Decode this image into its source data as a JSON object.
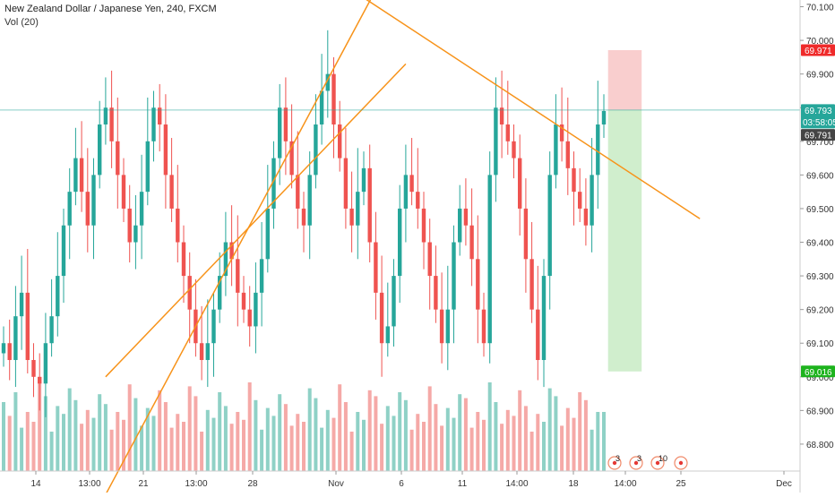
{
  "header": {
    "title": "New Zealand Dollar / Japanese Yen, 240, FXCM",
    "volume_label": "Vol (20)"
  },
  "colors": {
    "up": "#26a69a",
    "down": "#ef5350",
    "up_vol": "#8fd1c6",
    "down_vol": "#f5a9a7",
    "trendline": "#f7931a",
    "price_line": "#26a69a",
    "stop_zone": "#f8c6c6",
    "target_zone": "#c8ebc4",
    "stop_badge": "#ef2a2a",
    "target_badge": "#1db31d",
    "last_badge": "#26a69a",
    "prev_badge": "#444444"
  },
  "price_badges": {
    "stop": "69.971",
    "last": "69.793",
    "countdown": "03:58:05",
    "prev": "69.791",
    "target": "69.016"
  },
  "events": [
    {
      "icon": "event-icon",
      "count": "3"
    },
    {
      "icon": "event-icon",
      "count": "3"
    },
    {
      "icon": "event-icon",
      "count": "10"
    },
    {
      "icon": "event-icon",
      "count": ""
    }
  ],
  "chart_data": {
    "type": "candlestick",
    "title": "New Zealand Dollar / Japanese Yen, 240, FXCM",
    "ylim": [
      68.72,
      70.12
    ],
    "y_ticks": [
      "68.800",
      "68.900",
      "69.000",
      "69.100",
      "69.200",
      "69.300",
      "69.400",
      "69.500",
      "69.600",
      "69.700",
      "69.800",
      "69.900",
      "70.000",
      "70.100"
    ],
    "x_ticks": [
      "14",
      "13:00",
      "21",
      "13:00",
      "28",
      "Nov",
      "6",
      "11",
      "14:00",
      "18",
      "14:00",
      "25",
      "Dec"
    ],
    "grid": false,
    "closes": [
      69.1,
      69.05,
      69.18,
      69.25,
      69.05,
      69.0,
      68.98,
      69.1,
      69.18,
      69.3,
      69.45,
      69.55,
      69.65,
      69.55,
      69.45,
      69.6,
      69.75,
      69.8,
      69.7,
      69.6,
      69.5,
      69.4,
      69.45,
      69.55,
      69.7,
      69.8,
      69.75,
      69.6,
      69.5,
      69.4,
      69.3,
      69.2,
      69.1,
      69.05,
      69.1,
      69.2,
      69.3,
      69.4,
      69.35,
      69.25,
      69.2,
      69.15,
      69.25,
      69.35,
      69.5,
      69.65,
      69.8,
      69.7,
      69.6,
      69.5,
      69.45,
      69.6,
      69.75,
      69.85,
      69.9,
      69.75,
      69.65,
      69.5,
      69.45,
      69.55,
      69.62,
      69.4,
      69.25,
      69.1,
      69.15,
      69.3,
      69.5,
      69.6,
      69.55,
      69.5,
      69.4,
      69.3,
      69.2,
      69.1,
      69.2,
      69.4,
      69.5,
      69.45,
      69.35,
      69.2,
      69.1,
      69.6,
      69.8,
      69.75,
      69.7,
      69.65,
      69.5,
      69.35,
      69.2,
      69.05,
      69.3,
      69.6,
      69.75,
      69.7,
      69.62,
      69.55,
      69.5,
      69.45,
      69.6,
      69.75,
      69.79
    ],
    "volume": {
      "name": "Vol (20)",
      "values": [
        35,
        28,
        40,
        22,
        30,
        25,
        45,
        38,
        20,
        33,
        29,
        42,
        36,
        24,
        31,
        27,
        39,
        34,
        21,
        30,
        26,
        44,
        37,
        23,
        32,
        28,
        41,
        35,
        22,
        29,
        25,
        43,
        38,
        20,
        31,
        27,
        40,
        33,
        24,
        30,
        26,
        45,
        36,
        21,
        32,
        28,
        39,
        34,
        23,
        29,
        25,
        42,
        37,
        22,
        31,
        27,
        44,
        35,
        20,
        30,
        26,
        41,
        38,
        24,
        33,
        28,
        40,
        36,
        21,
        29,
        25,
        43,
        34,
        23,
        32,
        27,
        39,
        37,
        22,
        30,
        26,
        45,
        35,
        24,
        31,
        28,
        41,
        33,
        20,
        29,
        25,
        42,
        38,
        23,
        32,
        27,
        40,
        36,
        21,
        30,
        30
      ]
    },
    "trendlines": [
      {
        "from": {
          "bar": 58,
          "price": 70.15
        },
        "to": {
          "bar": 116,
          "price": 69.47
        }
      },
      {
        "from": {
          "bar": 17,
          "price": 69.0
        },
        "to": {
          "bar": 67,
          "price": 69.93
        }
      },
      {
        "from": {
          "bar": 17,
          "price": 68.65
        },
        "to": {
          "bar": 62,
          "price": 70.15
        }
      }
    ],
    "position": {
      "entry": 69.793,
      "stop": 69.971,
      "target": 69.016
    }
  }
}
